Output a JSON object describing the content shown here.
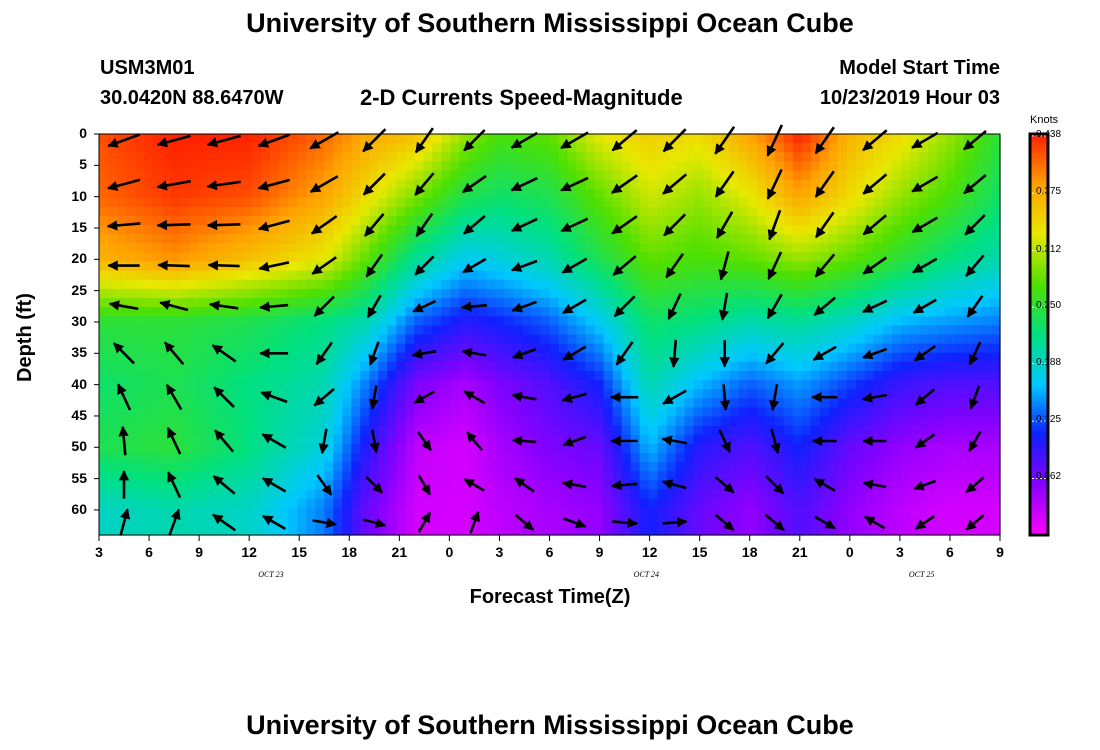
{
  "header": {
    "title_top": "University of Southern Mississippi Ocean Cube",
    "title_bottom": "University of Southern Mississippi Ocean Cube",
    "station_id": "USM3M01",
    "station_coords": "30.0420N 88.6470W",
    "plot_name": "2-D Currents Speed-Magnitude",
    "model_start_label": "Model Start Time",
    "model_start_value": "10/23/2019 Hour 03"
  },
  "chart_data": {
    "type": "heatmap",
    "title": "2-D Currents Speed-Magnitude",
    "xlabel": "Forecast Time(Z)",
    "ylabel": "Depth (ft)",
    "x_tick_labels": [
      "3",
      "6",
      "9",
      "12",
      "15",
      "18",
      "21",
      "0",
      "3",
      "6",
      "9",
      "12",
      "15",
      "18",
      "21",
      "0",
      "3",
      "6",
      "9"
    ],
    "x_hours_range": [
      0,
      54
    ],
    "date_labels": [
      {
        "text": "OCT 23",
        "hour": 10.5
      },
      {
        "text": "OCT 24",
        "hour": 33
      },
      {
        "text": "OCT 25",
        "hour": 49.5
      }
    ],
    "y_ticks": [
      0,
      5,
      10,
      15,
      20,
      25,
      30,
      35,
      40,
      45,
      50,
      55,
      60
    ],
    "ylim": [
      0,
      64
    ],
    "colorbar": {
      "unit": "Knots",
      "range": [
        0.0,
        0.44
      ],
      "ticks": [
        "0.438",
        "0.375",
        "0.312",
        "0.250",
        "0.188",
        "0.125",
        "0.062"
      ],
      "colors": [
        "#ff00ff",
        "#8800ff",
        "#1020ff",
        "#00c8ff",
        "#00e080",
        "#50e000",
        "#e8e800",
        "#ffa000",
        "#ff2000"
      ]
    },
    "speed_profile_knots": {
      "depths_ft": [
        0,
        10,
        20,
        30,
        40,
        50,
        60
      ],
      "hours": [
        0,
        4.5,
        9,
        13.5,
        16,
        19,
        22,
        24,
        27,
        30,
        33,
        36,
        39,
        42,
        45,
        48,
        51,
        54
      ],
      "values": [
        [
          0.42,
          0.44,
          0.44,
          0.41,
          0.38,
          0.36,
          0.3,
          0.27,
          0.28,
          0.33,
          0.35,
          0.34,
          0.38,
          0.44,
          0.37,
          0.34,
          0.3,
          0.25
        ],
        [
          0.41,
          0.43,
          0.42,
          0.38,
          0.34,
          0.29,
          0.24,
          0.23,
          0.24,
          0.28,
          0.32,
          0.3,
          0.33,
          0.38,
          0.34,
          0.3,
          0.27,
          0.23
        ],
        [
          0.37,
          0.39,
          0.36,
          0.33,
          0.28,
          0.21,
          0.17,
          0.18,
          0.2,
          0.24,
          0.28,
          0.27,
          0.28,
          0.3,
          0.28,
          0.25,
          0.22,
          0.2
        ],
        [
          0.25,
          0.25,
          0.24,
          0.22,
          0.2,
          0.13,
          0.1,
          0.11,
          0.13,
          0.17,
          0.23,
          0.22,
          0.2,
          0.21,
          0.19,
          0.16,
          0.15,
          0.14
        ],
        [
          0.23,
          0.24,
          0.22,
          0.2,
          0.14,
          0.06,
          0.04,
          0.06,
          0.08,
          0.11,
          0.2,
          0.16,
          0.13,
          0.15,
          0.12,
          0.09,
          0.08,
          0.08
        ],
        [
          0.24,
          0.25,
          0.22,
          0.18,
          0.1,
          0.03,
          0.02,
          0.04,
          0.06,
          0.07,
          0.16,
          0.1,
          0.08,
          0.11,
          0.07,
          0.05,
          0.04,
          0.04
        ],
        [
          0.19,
          0.2,
          0.19,
          0.14,
          0.07,
          0.02,
          0.02,
          0.03,
          0.04,
          0.05,
          0.11,
          0.07,
          0.05,
          0.08,
          0.05,
          0.03,
          0.02,
          0.02
        ]
      ]
    },
    "vector_field": {
      "hours": [
        1.5,
        4.5,
        7.5,
        10.5,
        13.5,
        16.5,
        19.5,
        22.5,
        25.5,
        28.5,
        31.5,
        34.5,
        37.5,
        40.5,
        43.5,
        46.5,
        49.5,
        52.5
      ],
      "depths_ft": [
        1,
        8,
        14.5,
        21,
        27.5,
        35,
        42,
        49,
        56,
        62
      ],
      "directions_deg": [
        [
          250,
          255,
          255,
          250,
          240,
          225,
          215,
          225,
          240,
          240,
          230,
          225,
          215,
          205,
          215,
          230,
          240,
          230
        ],
        [
          255,
          260,
          262,
          255,
          240,
          225,
          220,
          235,
          245,
          245,
          235,
          230,
          215,
          205,
          215,
          230,
          240,
          230
        ],
        [
          265,
          268,
          268,
          255,
          235,
          220,
          215,
          230,
          245,
          245,
          235,
          225,
          210,
          200,
          215,
          230,
          240,
          225
        ],
        [
          270,
          272,
          272,
          258,
          235,
          215,
          225,
          240,
          250,
          240,
          230,
          215,
          195,
          205,
          220,
          235,
          240,
          220
        ],
        [
          280,
          285,
          278,
          265,
          225,
          210,
          245,
          265,
          250,
          240,
          225,
          205,
          190,
          210,
          230,
          245,
          240,
          215
        ],
        [
          315,
          320,
          305,
          270,
          215,
          200,
          260,
          280,
          250,
          240,
          215,
          185,
          180,
          220,
          240,
          250,
          235,
          205
        ],
        [
          335,
          330,
          315,
          290,
          230,
          190,
          240,
          300,
          280,
          255,
          270,
          240,
          175,
          190,
          270,
          260,
          230,
          200
        ],
        [
          355,
          335,
          320,
          300,
          190,
          170,
          145,
          320,
          275,
          250,
          270,
          280,
          155,
          165,
          270,
          270,
          235,
          210
        ],
        [
          0,
          335,
          310,
          300,
          145,
          135,
          150,
          300,
          305,
          280,
          265,
          285,
          130,
          135,
          300,
          280,
          250,
          230
        ],
        [
          15,
          20,
          305,
          300,
          100,
          105,
          30,
          20,
          130,
          110,
          95,
          85,
          130,
          130,
          120,
          300,
          235,
          230
        ]
      ],
      "magnitudes": [
        [
          0.42,
          0.44,
          0.44,
          0.41,
          0.38,
          0.34,
          0.28,
          0.26,
          0.28,
          0.33,
          0.35,
          0.34,
          0.4,
          0.44,
          0.36,
          0.33,
          0.28,
          0.25
        ],
        [
          0.41,
          0.43,
          0.42,
          0.38,
          0.34,
          0.29,
          0.24,
          0.23,
          0.24,
          0.28,
          0.32,
          0.3,
          0.33,
          0.38,
          0.34,
          0.3,
          0.27,
          0.23
        ],
        [
          0.39,
          0.4,
          0.39,
          0.36,
          0.31,
          0.25,
          0.2,
          0.2,
          0.22,
          0.26,
          0.3,
          0.29,
          0.3,
          0.34,
          0.31,
          0.28,
          0.25,
          0.21
        ],
        [
          0.34,
          0.35,
          0.33,
          0.3,
          0.26,
          0.19,
          0.15,
          0.16,
          0.18,
          0.22,
          0.27,
          0.26,
          0.26,
          0.28,
          0.26,
          0.23,
          0.2,
          0.19
        ],
        [
          0.25,
          0.25,
          0.24,
          0.22,
          0.2,
          0.13,
          0.1,
          0.11,
          0.13,
          0.17,
          0.23,
          0.22,
          0.2,
          0.21,
          0.19,
          0.16,
          0.15,
          0.14
        ],
        [
          0.24,
          0.24,
          0.23,
          0.21,
          0.17,
          0.09,
          0.07,
          0.08,
          0.1,
          0.14,
          0.21,
          0.19,
          0.16,
          0.18,
          0.15,
          0.12,
          0.11,
          0.11
        ],
        [
          0.23,
          0.24,
          0.22,
          0.2,
          0.14,
          0.06,
          0.04,
          0.06,
          0.08,
          0.11,
          0.2,
          0.16,
          0.13,
          0.15,
          0.12,
          0.09,
          0.08,
          0.08
        ],
        [
          0.24,
          0.25,
          0.22,
          0.18,
          0.1,
          0.03,
          0.02,
          0.04,
          0.06,
          0.07,
          0.16,
          0.1,
          0.08,
          0.11,
          0.07,
          0.05,
          0.04,
          0.04
        ],
        [
          0.21,
          0.22,
          0.2,
          0.16,
          0.08,
          0.02,
          0.02,
          0.03,
          0.05,
          0.06,
          0.13,
          0.08,
          0.06,
          0.09,
          0.06,
          0.04,
          0.03,
          0.03
        ],
        [
          0.19,
          0.2,
          0.19,
          0.14,
          0.07,
          0.02,
          0.02,
          0.03,
          0.04,
          0.05,
          0.11,
          0.07,
          0.05,
          0.08,
          0.05,
          0.03,
          0.02,
          0.02
        ]
      ]
    }
  }
}
